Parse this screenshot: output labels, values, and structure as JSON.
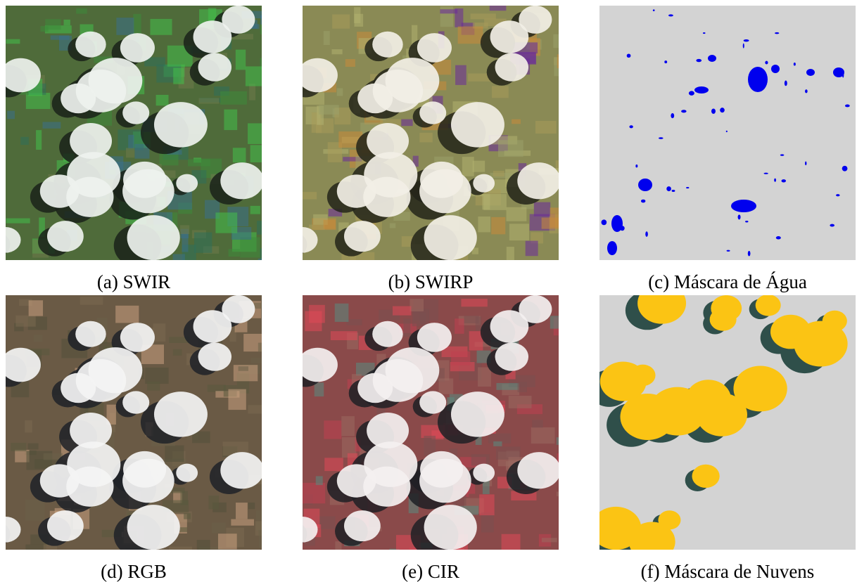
{
  "panels": [
    {
      "caption": "(a) SWIR"
    },
    {
      "caption": "(b) SWIRP"
    },
    {
      "caption": "(c) Máscara de Água"
    },
    {
      "caption": "(d) RGB"
    },
    {
      "caption": "(e) CIR"
    },
    {
      "caption": "(f) Máscara de Nuvens"
    }
  ]
}
